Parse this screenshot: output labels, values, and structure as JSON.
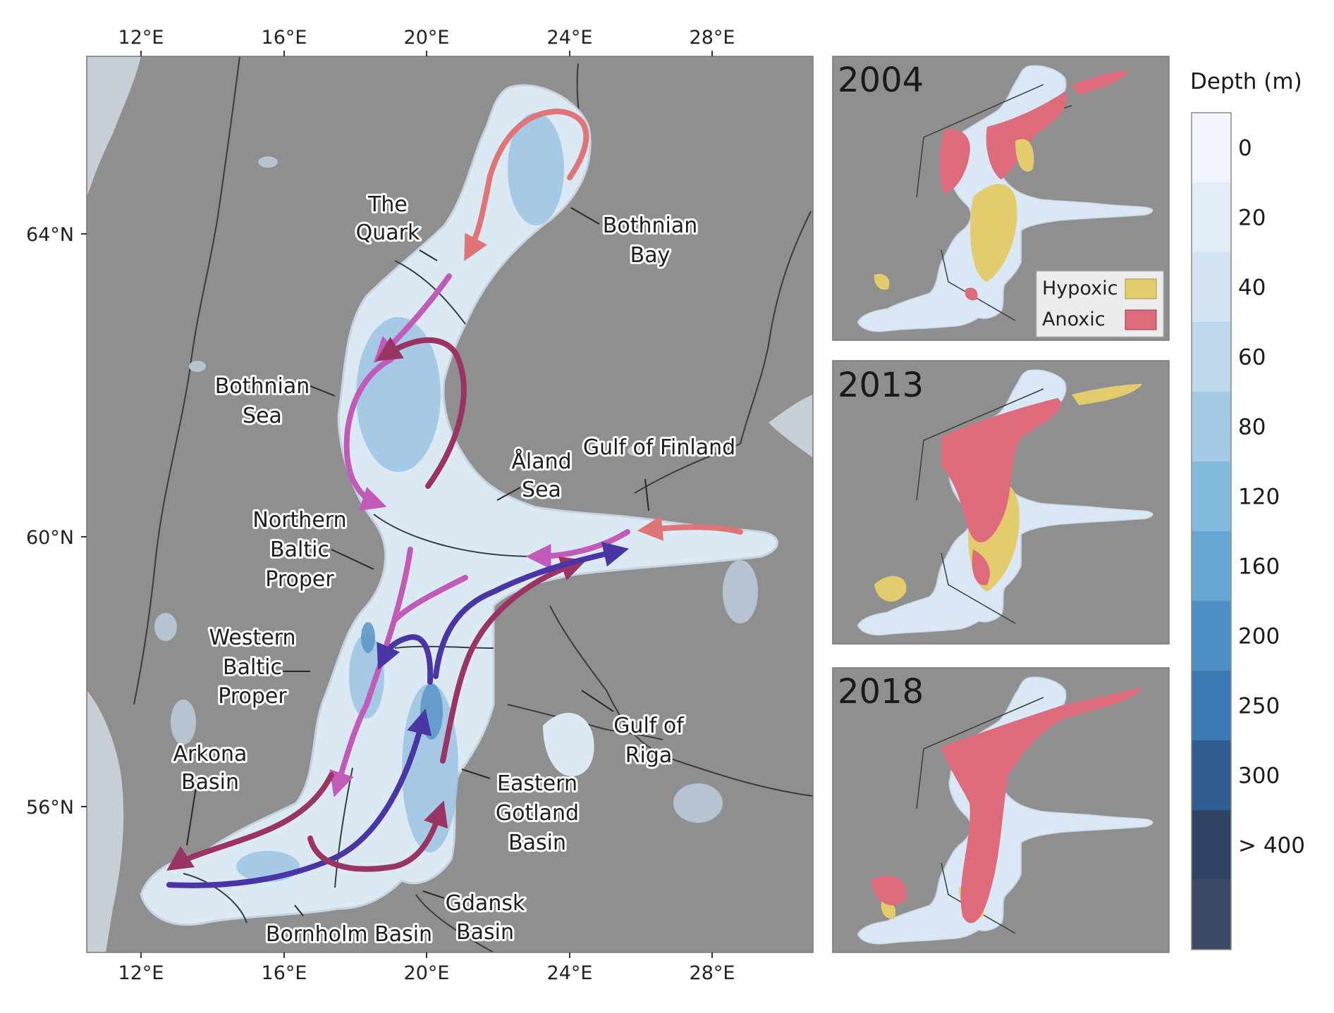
{
  "main_map": {
    "top_longitude_ticks": [
      "12°E",
      "16°E",
      "20°E",
      "24°E",
      "28°E"
    ],
    "bottom_longitude_ticks": [
      "12°E",
      "16°E",
      "20°E",
      "24°E",
      "28°E"
    ],
    "latitude_ticks": [
      "64°N",
      "60°N",
      "56°N"
    ],
    "labels": {
      "the_quark": [
        "The",
        "Quark"
      ],
      "bothnian_bay": [
        "Bothnian",
        "Bay"
      ],
      "bothnian_sea": [
        "Bothnian",
        "Sea"
      ],
      "aland_sea": [
        "Åland",
        "Sea"
      ],
      "gulf_of_finland": "Gulf of Finland",
      "northern_baltic_proper": [
        "Northern",
        "Baltic",
        "Proper"
      ],
      "western_baltic_proper": [
        "Western",
        "Baltic",
        "Proper"
      ],
      "gulf_of_riga": [
        "Gulf of",
        "Riga"
      ],
      "arkona_basin": [
        "Arkona",
        "Basin"
      ],
      "eastern_gotland_basin": [
        "Eastern",
        "Gotland",
        "Basin"
      ],
      "gdansk_basin": [
        "Gdansk",
        "Basin"
      ],
      "bornholm_basin": "Bornholm Basin"
    },
    "colors": {
      "land": "#8f8f8f",
      "outside_land": "#c8ced6",
      "arrow_coral": "#e07578",
      "arrow_magenta": "#c25bb8",
      "arrow_maroon": "#9a3463",
      "arrow_indigo": "#4a35a5"
    }
  },
  "panels": [
    {
      "year": "2004"
    },
    {
      "year": "2013"
    },
    {
      "year": "2018"
    }
  ],
  "legend": {
    "hypoxic_label": "Hypoxic",
    "anoxic_label": "Anoxic",
    "hypoxic_color": "#e3cc6e",
    "anoxic_color": "#de6b7c"
  },
  "colorbar": {
    "title": "Depth (m)",
    "labels": [
      "0",
      "20",
      "40",
      "60",
      "80",
      "120",
      "160",
      "200",
      "250",
      "300",
      "> 400"
    ],
    "colors": [
      "#f0f6fc",
      "#e2edf7",
      "#d2e3f1",
      "#bdd7eb",
      "#a3c9e5",
      "#83badd",
      "#66a7d4",
      "#4e90c6",
      "#3d79b5",
      "#2f5d91",
      "#2f4464",
      "#3a4a64"
    ]
  }
}
